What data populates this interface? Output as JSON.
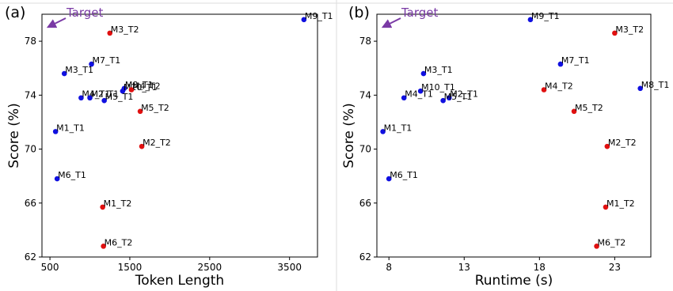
{
  "colors": {
    "T1": "#1010e0",
    "T2": "#e01010",
    "target": "#7a3aa5"
  },
  "chart_data": [
    {
      "type": "scatter",
      "panel_label": "(a)",
      "xlabel": "Token Length",
      "ylabel": "Score (%)",
      "xlim": [
        400,
        3850
      ],
      "ylim": [
        62,
        80
      ],
      "xticks": [
        500,
        1500,
        2500,
        3500
      ],
      "yticks": [
        62,
        66,
        70,
        74,
        78
      ],
      "xtick_labels": [
        "500",
        "1500",
        "2500",
        "3500"
      ],
      "ytick_labels": [
        "62",
        "66",
        "70",
        "74",
        "78"
      ],
      "target_label": "Target",
      "grid": false,
      "points": [
        {
          "label": "M9_T1",
          "x": 3680,
          "y": 79.6,
          "group": "T1"
        },
        {
          "label": "M3_T2",
          "x": 1250,
          "y": 78.6,
          "group": "T2"
        },
        {
          "label": "M7_T1",
          "x": 1020,
          "y": 76.3,
          "group": "T1"
        },
        {
          "label": "M3_T1",
          "x": 680,
          "y": 75.6,
          "group": "T1"
        },
        {
          "label": "M8_T1",
          "x": 1430,
          "y": 74.5,
          "group": "T1"
        },
        {
          "label": "M10_T1",
          "x": 1410,
          "y": 74.3,
          "group": "T1"
        },
        {
          "label": "M4_T2",
          "x": 1520,
          "y": 74.4,
          "group": "T2"
        },
        {
          "label": "M4_T1",
          "x": 890,
          "y": 73.8,
          "group": "T1"
        },
        {
          "label": "M2_T1",
          "x": 1000,
          "y": 73.8,
          "group": "T1"
        },
        {
          "label": "M5_T1",
          "x": 1180,
          "y": 73.6,
          "group": "T1"
        },
        {
          "label": "M5_T2",
          "x": 1630,
          "y": 72.8,
          "group": "T2"
        },
        {
          "label": "M1_T1",
          "x": 570,
          "y": 71.3,
          "group": "T1"
        },
        {
          "label": "M2_T2",
          "x": 1650,
          "y": 70.2,
          "group": "T2"
        },
        {
          "label": "M6_T1",
          "x": 590,
          "y": 67.8,
          "group": "T1"
        },
        {
          "label": "M1_T2",
          "x": 1160,
          "y": 65.7,
          "group": "T2"
        },
        {
          "label": "M6_T2",
          "x": 1170,
          "y": 62.8,
          "group": "T2"
        }
      ]
    },
    {
      "type": "scatter",
      "panel_label": "(b)",
      "xlabel": "Runtime (s)",
      "ylabel": "Score (%)",
      "xlim": [
        7.2,
        25.4
      ],
      "ylim": [
        62,
        80
      ],
      "xticks": [
        8,
        13,
        18,
        23
      ],
      "yticks": [
        62,
        66,
        70,
        74,
        78
      ],
      "xtick_labels": [
        "8",
        "13",
        "18",
        "23"
      ],
      "ytick_labels": [
        "62",
        "66",
        "70",
        "74",
        "78"
      ],
      "target_label": "Target",
      "grid": false,
      "points": [
        {
          "label": "M9_T1",
          "x": 17.4,
          "y": 79.6,
          "group": "T1"
        },
        {
          "label": "M3_T2",
          "x": 23.0,
          "y": 78.6,
          "group": "T2"
        },
        {
          "label": "M7_T1",
          "x": 19.4,
          "y": 76.3,
          "group": "T1"
        },
        {
          "label": "M3_T1",
          "x": 10.3,
          "y": 75.6,
          "group": "T1"
        },
        {
          "label": "M4_T2",
          "x": 18.3,
          "y": 74.4,
          "group": "T2"
        },
        {
          "label": "M8_T1",
          "x": 24.7,
          "y": 74.5,
          "group": "T1"
        },
        {
          "label": "M10_T1",
          "x": 10.1,
          "y": 74.3,
          "group": "T1"
        },
        {
          "label": "M4_T1",
          "x": 9.0,
          "y": 73.8,
          "group": "T1"
        },
        {
          "label": "M2_T1",
          "x": 12.0,
          "y": 73.8,
          "group": "T1"
        },
        {
          "label": "M5_T1",
          "x": 11.6,
          "y": 73.6,
          "group": "T1"
        },
        {
          "label": "M5_T2",
          "x": 20.3,
          "y": 72.8,
          "group": "T2"
        },
        {
          "label": "M1_T1",
          "x": 7.6,
          "y": 71.3,
          "group": "T1"
        },
        {
          "label": "M2_T2",
          "x": 22.5,
          "y": 70.2,
          "group": "T2"
        },
        {
          "label": "M6_T1",
          "x": 8.0,
          "y": 67.8,
          "group": "T1"
        },
        {
          "label": "M1_T2",
          "x": 22.4,
          "y": 65.7,
          "group": "T2"
        },
        {
          "label": "M6_T2",
          "x": 21.8,
          "y": 62.8,
          "group": "T2"
        }
      ]
    }
  ]
}
